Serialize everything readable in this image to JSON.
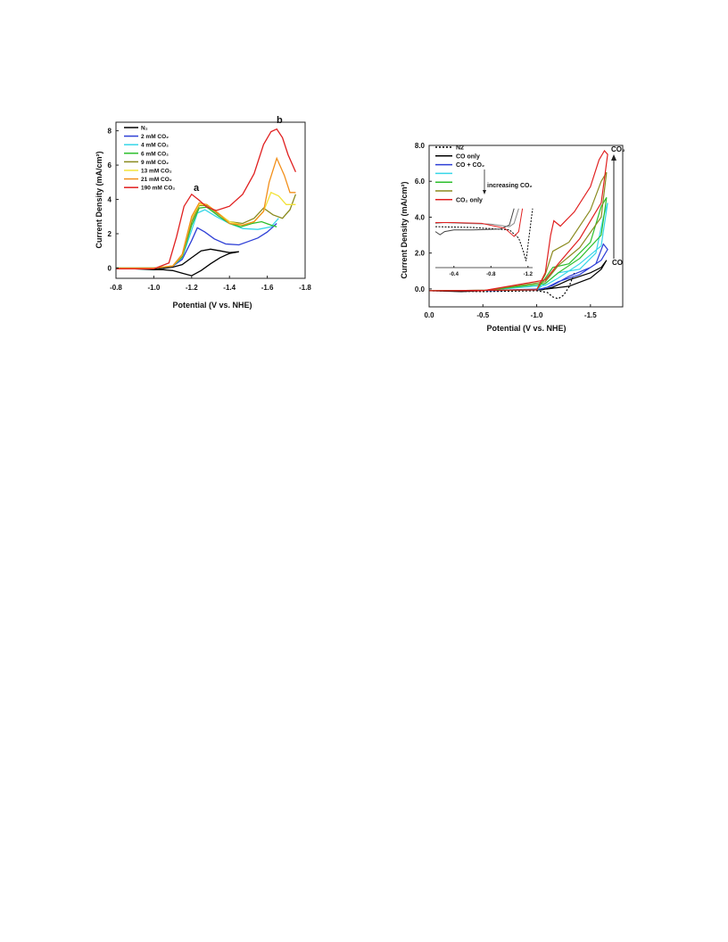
{
  "chart_data": [
    {
      "type": "line",
      "xlabel": "Potential (V vs. NHE)",
      "ylabel": "Current Density (mA/cm²)",
      "xlim": [
        -0.8,
        -1.8
      ],
      "ylim": [
        -0.6,
        8.5
      ],
      "xticks": [
        "-0.8",
        "-1.0",
        "-1.2",
        "-1.4",
        "-1.6",
        "-1.8"
      ],
      "yticks": [
        "0",
        "2",
        "4",
        "6",
        "8"
      ],
      "annotations": [
        {
          "text": "a",
          "x": -1.2,
          "y": 4.8
        },
        {
          "text": "b",
          "x": -1.61,
          "y": 8.2
        }
      ],
      "legend_position": "top-left",
      "series": [
        {
          "name": "N₂",
          "color": "#000000",
          "x": [
            -0.8,
            -1.0,
            -1.05,
            -1.1,
            -1.15,
            -1.2,
            -1.25,
            -1.3,
            -1.35,
            -1.4,
            -1.45,
            -1.4,
            -1.35,
            -1.3,
            -1.25,
            -1.2,
            -1.15,
            -1.1,
            -1.05,
            -1.0,
            -0.9,
            -0.8
          ],
          "y": [
            0.0,
            -0.05,
            -0.02,
            0.05,
            0.2,
            0.6,
            1.0,
            1.1,
            1.0,
            0.9,
            0.95,
            0.85,
            0.6,
            0.25,
            -0.15,
            -0.45,
            -0.3,
            -0.15,
            -0.1,
            -0.1,
            -0.05,
            0.0
          ]
        },
        {
          "name": "2 mM CO₂",
          "color": "#2e3fd6",
          "x": [
            -0.8,
            -1.0,
            -1.1,
            -1.15,
            -1.2,
            -1.23,
            -1.27,
            -1.32,
            -1.38,
            -1.45,
            -1.5,
            -1.55,
            -1.6,
            -1.65
          ],
          "y": [
            0.0,
            0.0,
            0.1,
            0.5,
            1.6,
            2.35,
            2.1,
            1.7,
            1.4,
            1.35,
            1.55,
            1.75,
            2.1,
            2.6
          ]
        },
        {
          "name": "4 mM CO₂",
          "color": "#36d6e8",
          "x": [
            -0.8,
            -1.0,
            -1.1,
            -1.15,
            -1.2,
            -1.23,
            -1.27,
            -1.33,
            -1.4,
            -1.47,
            -1.55,
            -1.62,
            -1.66
          ],
          "y": [
            0.0,
            0.0,
            0.12,
            0.6,
            2.2,
            3.2,
            3.4,
            3.0,
            2.6,
            2.3,
            2.25,
            2.4,
            2.9
          ]
        },
        {
          "name": "6 mM CO₂",
          "color": "#2cbf2c",
          "x": [
            -0.8,
            -1.0,
            -1.1,
            -1.15,
            -1.2,
            -1.24,
            -1.28,
            -1.34,
            -1.4,
            -1.46,
            -1.52,
            -1.57,
            -1.62,
            -1.65
          ],
          "y": [
            0.0,
            0.0,
            0.12,
            0.65,
            2.5,
            3.5,
            3.55,
            3.05,
            2.6,
            2.4,
            2.6,
            2.7,
            2.5,
            2.4
          ]
        },
        {
          "name": "9 mM CO₂",
          "color": "#8a8a1e",
          "x": [
            -0.8,
            -1.0,
            -1.1,
            -1.15,
            -1.2,
            -1.24,
            -1.28,
            -1.34,
            -1.4,
            -1.47,
            -1.53,
            -1.58,
            -1.63,
            -1.68,
            -1.72,
            -1.75
          ],
          "y": [
            0.0,
            0.0,
            0.12,
            0.7,
            2.7,
            3.65,
            3.65,
            3.15,
            2.7,
            2.6,
            2.9,
            3.5,
            3.1,
            2.9,
            3.4,
            4.3
          ]
        },
        {
          "name": "13 mM CO₂",
          "color": "#f2e23a",
          "x": [
            -0.8,
            -1.0,
            -1.1,
            -1.15,
            -1.2,
            -1.24,
            -1.28,
            -1.34,
            -1.4,
            -1.47,
            -1.53,
            -1.58,
            -1.62,
            -1.66,
            -1.7,
            -1.75
          ],
          "y": [
            0.0,
            0.0,
            0.12,
            0.75,
            2.9,
            3.7,
            3.7,
            3.2,
            2.7,
            2.5,
            2.7,
            3.3,
            4.4,
            4.2,
            3.7,
            3.7
          ]
        },
        {
          "name": "21 mM CO₂",
          "color": "#f28f1a",
          "x": [
            -0.8,
            -1.0,
            -1.1,
            -1.15,
            -1.2,
            -1.24,
            -1.28,
            -1.34,
            -1.4,
            -1.47,
            -1.53,
            -1.58,
            -1.61,
            -1.65,
            -1.69,
            -1.72,
            -1.75
          ],
          "y": [
            0.0,
            0.0,
            0.12,
            0.8,
            3.0,
            3.8,
            3.7,
            3.2,
            2.6,
            2.5,
            2.7,
            3.3,
            5.0,
            6.4,
            5.4,
            4.4,
            4.4
          ]
        },
        {
          "name": "190 mM CO₂",
          "color": "#e02020",
          "x": [
            -0.8,
            -1.0,
            -1.08,
            -1.12,
            -1.16,
            -1.2,
            -1.24,
            -1.28,
            -1.33,
            -1.4,
            -1.47,
            -1.53,
            -1.58,
            -1.62,
            -1.65,
            -1.68,
            -1.71,
            -1.75
          ],
          "y": [
            -0.05,
            -0.05,
            0.3,
            1.8,
            3.6,
            4.3,
            3.95,
            3.55,
            3.35,
            3.6,
            4.3,
            5.5,
            7.2,
            7.95,
            8.1,
            7.6,
            6.6,
            5.6
          ]
        }
      ]
    },
    {
      "type": "line",
      "xlabel": "Potential (V vs. NHE)",
      "ylabel": "Current Density (mA/cm²)",
      "xlim": [
        0.0,
        -1.8
      ],
      "ylim": [
        -1.0,
        8.0
      ],
      "xticks": [
        "0.0",
        "-0.5",
        "-1.0",
        "-1.5"
      ],
      "yticks": [
        "0.0",
        "2.0",
        "4.0",
        "6.0",
        "8.0"
      ],
      "annotations": [
        {
          "text": "CO₂",
          "x": -1.75,
          "y": 7.5
        },
        {
          "text": "CO",
          "x": -1.75,
          "y": 1.7
        },
        {
          "text": "increasing CO₂",
          "x": -0.58,
          "y": 5.9
        }
      ],
      "legend_position": "top-left",
      "series": [
        {
          "name": "N2",
          "color": "#000000",
          "dash": true,
          "x": [
            0.0,
            -0.5,
            -1.0,
            -1.1,
            -1.15,
            -1.2,
            -1.25,
            -1.3,
            -1.35
          ],
          "y": [
            -0.1,
            -0.15,
            -0.1,
            -0.2,
            -0.45,
            -0.55,
            -0.35,
            0.1,
            0.9
          ]
        },
        {
          "name": "CO only",
          "color": "#000000",
          "x": [
            0.0,
            -0.3,
            -0.5,
            -1.0,
            -1.1,
            -1.3,
            -1.5,
            -1.6,
            -1.65,
            -1.6,
            -1.5,
            -1.3,
            -1.15,
            -1.05,
            -0.5,
            0.0
          ],
          "y": [
            -0.1,
            -0.15,
            -0.1,
            -0.05,
            0.0,
            0.15,
            0.6,
            1.1,
            1.6,
            1.2,
            0.9,
            0.5,
            0.1,
            -0.05,
            -0.1,
            -0.1
          ]
        },
        {
          "name": "CO + CO₂",
          "color": "#2e3fd6",
          "x": [
            0.0,
            -0.5,
            -1.0,
            -1.1,
            -1.2,
            -1.4,
            -1.55,
            -1.62,
            -1.66,
            -1.6,
            -1.5,
            -1.3,
            -1.15,
            -1.05,
            -0.5,
            0.0
          ],
          "y": [
            -0.1,
            -0.1,
            -0.05,
            0.1,
            0.4,
            0.8,
            1.4,
            2.5,
            2.2,
            1.6,
            1.2,
            0.7,
            0.2,
            0.0,
            -0.1,
            -0.1
          ]
        },
        {
          "name": "",
          "color": "#36d6e8",
          "x": [
            0.0,
            -1.0,
            -1.1,
            -1.2,
            -1.4,
            -1.55,
            -1.62,
            -1.66,
            -1.6,
            -1.4,
            -1.2,
            -1.08,
            -0.5,
            0.0
          ],
          "y": [
            -0.1,
            -0.05,
            0.4,
            0.9,
            1.1,
            2.0,
            4.0,
            4.8,
            2.4,
            1.4,
            0.6,
            0.2,
            -0.1,
            -0.1
          ]
        },
        {
          "name": "",
          "color": "#2cbf2c",
          "x": [
            0.0,
            -1.0,
            -1.08,
            -1.15,
            -1.3,
            -1.5,
            -1.6,
            -1.65,
            -1.6,
            -1.4,
            -1.2,
            -1.08,
            -0.5,
            0.0
          ],
          "y": [
            -0.1,
            -0.05,
            0.6,
            1.2,
            1.4,
            2.6,
            4.6,
            5.1,
            3.0,
            1.7,
            0.9,
            0.3,
            -0.1,
            -0.1
          ]
        },
        {
          "name": "",
          "color": "#8a8a1e",
          "x": [
            0.0,
            -1.0,
            -1.08,
            -1.15,
            -1.3,
            -1.5,
            -1.6,
            -1.65,
            -1.6,
            -1.4,
            -1.2,
            -1.08,
            -0.5,
            0.0
          ],
          "y": [
            -0.1,
            -0.05,
            0.8,
            2.1,
            2.6,
            4.4,
            6.0,
            6.5,
            4.0,
            2.3,
            1.3,
            0.4,
            -0.1,
            -0.1
          ]
        },
        {
          "name": "CO₂ only",
          "color": "#e02020",
          "x": [
            0.0,
            -1.0,
            -1.08,
            -1.13,
            -1.16,
            -1.22,
            -1.35,
            -1.5,
            -1.58,
            -1.63,
            -1.66,
            -1.6,
            -1.4,
            -1.2,
            -1.08,
            -0.5,
            0.0
          ],
          "y": [
            -0.1,
            -0.05,
            0.9,
            3.0,
            3.8,
            3.5,
            4.3,
            5.7,
            7.2,
            7.7,
            7.5,
            4.8,
            2.8,
            1.4,
            0.5,
            -0.1,
            -0.1
          ]
        }
      ],
      "inset": {
        "xlim": [
          -0.2,
          -1.25
        ],
        "ylim": [
          0.8,
          4.5
        ],
        "xticks": [
          "-0.4",
          "-0.8",
          "-1.2"
        ],
        "series": [
          {
            "color": "#000000",
            "dash": true,
            "x": [
              -0.2,
              -0.6,
              -1.0,
              -1.1,
              -1.15,
              -1.18,
              -1.21,
              -1.25
            ],
            "y": [
              3.3,
              3.25,
              3.1,
              2.6,
              1.8,
              1.2,
              2.6,
              4.4
            ]
          },
          {
            "color": "#444444",
            "x": [
              -0.2,
              -0.25,
              -0.3,
              -0.4,
              -0.6,
              -0.9,
              -1.0,
              -1.05
            ],
            "y": [
              3.0,
              2.8,
              3.0,
              3.1,
              3.1,
              3.15,
              3.4,
              4.4
            ]
          },
          {
            "color": "#888888",
            "x": [
              -0.2,
              -0.3,
              -0.5,
              -0.8,
              -1.0,
              -1.05,
              -1.1
            ],
            "y": [
              3.5,
              3.55,
              3.5,
              3.45,
              3.3,
              3.5,
              4.4
            ]
          },
          {
            "color": "#e02020",
            "x": [
              -0.2,
              -0.4,
              -0.7,
              -0.95,
              -1.05,
              -1.1,
              -1.14
            ],
            "y": [
              3.55,
              3.55,
              3.5,
              3.2,
              2.7,
              3.0,
              4.4
            ]
          }
        ]
      }
    }
  ]
}
